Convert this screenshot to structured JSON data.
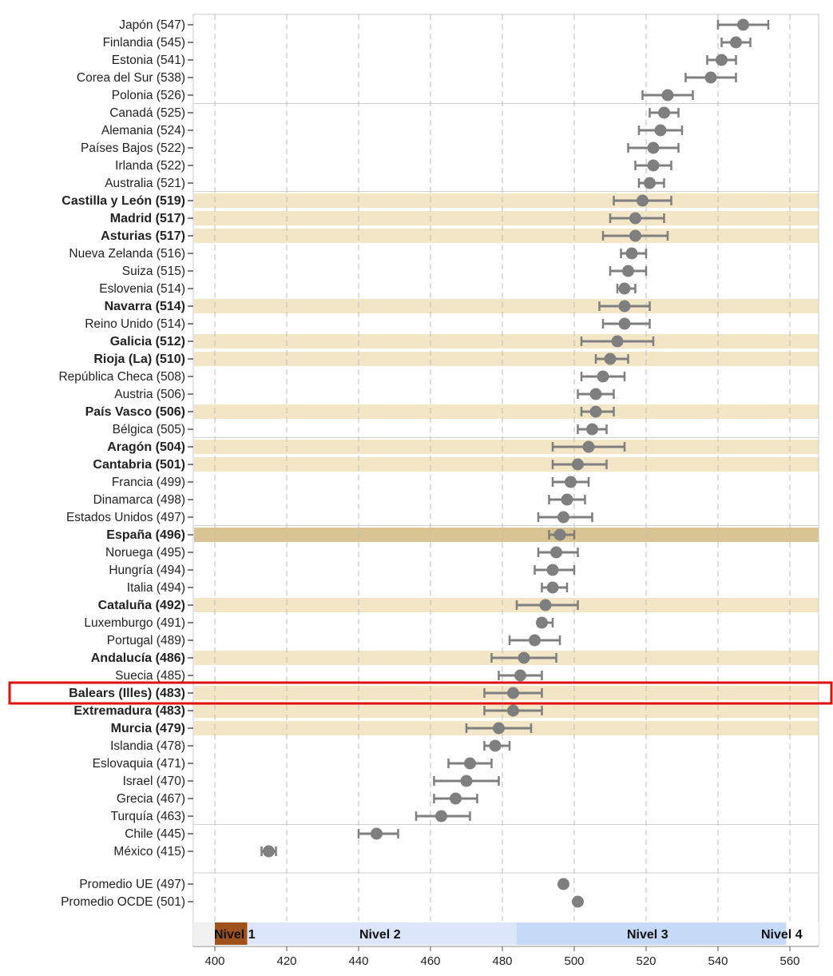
{
  "chart_data": {
    "type": "scatter",
    "subtype": "dot plot with confidence intervals",
    "x_ticks": [
      "400",
      "420",
      "440",
      "460",
      "480",
      "500",
      "520",
      "540",
      "560"
    ],
    "xlim": [
      394,
      568
    ],
    "grid": "vertical dashed",
    "bar_color": "#7f7f7f",
    "highlight_color": "#f3e6c6",
    "spain_highlight_color": "#d9c494",
    "selection_box_color": "#e01010",
    "rows": [
      {
        "label": "Japón (547)",
        "value": 547,
        "lo": 540,
        "hi": 554,
        "kind": "country"
      },
      {
        "label": "Finlandia (545)",
        "value": 545,
        "lo": 541,
        "hi": 549,
        "kind": "country"
      },
      {
        "label": "Estonia (541)",
        "value": 541,
        "lo": 537,
        "hi": 545,
        "kind": "country"
      },
      {
        "label": "Corea del Sur (538)",
        "value": 538,
        "lo": 531,
        "hi": 545,
        "kind": "country"
      },
      {
        "label": "Polonia (526)",
        "value": 526,
        "lo": 519,
        "hi": 533,
        "kind": "country"
      },
      {
        "label": "Canadá (525)",
        "value": 525,
        "lo": 521,
        "hi": 529,
        "kind": "country"
      },
      {
        "label": "Alemania (524)",
        "value": 524,
        "lo": 518,
        "hi": 530,
        "kind": "country"
      },
      {
        "label": "Países Bajos (522)",
        "value": 522,
        "lo": 515,
        "hi": 529,
        "kind": "country"
      },
      {
        "label": "Irlanda (522)",
        "value": 522,
        "lo": 517,
        "hi": 527,
        "kind": "country"
      },
      {
        "label": "Australia (521)",
        "value": 521,
        "lo": 518,
        "hi": 525,
        "kind": "country"
      },
      {
        "label": "Castilla y León (519)",
        "value": 519,
        "lo": 511,
        "hi": 527,
        "kind": "region"
      },
      {
        "label": "Madrid (517)",
        "value": 517,
        "lo": 510,
        "hi": 525,
        "kind": "region"
      },
      {
        "label": "Asturias (517)",
        "value": 517,
        "lo": 508,
        "hi": 526,
        "kind": "region"
      },
      {
        "label": "Nueva Zelanda (516)",
        "value": 516,
        "lo": 513,
        "hi": 520,
        "kind": "country"
      },
      {
        "label": "Suiza (515)",
        "value": 515,
        "lo": 510,
        "hi": 520,
        "kind": "country"
      },
      {
        "label": "Eslovenia (514)",
        "value": 514,
        "lo": 512,
        "hi": 517,
        "kind": "country"
      },
      {
        "label": "Navarra (514)",
        "value": 514,
        "lo": 507,
        "hi": 521,
        "kind": "region"
      },
      {
        "label": "Reino Unido (514)",
        "value": 514,
        "lo": 508,
        "hi": 521,
        "kind": "country"
      },
      {
        "label": "Galicia (512)",
        "value": 512,
        "lo": 502,
        "hi": 522,
        "kind": "region"
      },
      {
        "label": "Rioja (La) (510)",
        "value": 510,
        "lo": 506,
        "hi": 515,
        "kind": "region"
      },
      {
        "label": "República Checa (508)",
        "value": 508,
        "lo": 502,
        "hi": 514,
        "kind": "country"
      },
      {
        "label": "Austria (506)",
        "value": 506,
        "lo": 501,
        "hi": 511,
        "kind": "country"
      },
      {
        "label": "País Vasco (506)",
        "value": 506,
        "lo": 502,
        "hi": 511,
        "kind": "region"
      },
      {
        "label": "Bélgica (505)",
        "value": 505,
        "lo": 501,
        "hi": 509,
        "kind": "country"
      },
      {
        "label": "Aragón (504)",
        "value": 504,
        "lo": 494,
        "hi": 514,
        "kind": "region"
      },
      {
        "label": "Cantabria (501)",
        "value": 501,
        "lo": 494,
        "hi": 509,
        "kind": "region"
      },
      {
        "label": "Francia (499)",
        "value": 499,
        "lo": 494,
        "hi": 504,
        "kind": "country"
      },
      {
        "label": "Dinamarca (498)",
        "value": 498,
        "lo": 493,
        "hi": 503,
        "kind": "country"
      },
      {
        "label": "Estados Unidos (497)",
        "value": 497,
        "lo": 490,
        "hi": 505,
        "kind": "country"
      },
      {
        "label": "España (496)",
        "value": 496,
        "lo": 493,
        "hi": 500,
        "kind": "spain"
      },
      {
        "label": "Noruega (495)",
        "value": 495,
        "lo": 490,
        "hi": 501,
        "kind": "country"
      },
      {
        "label": "Hungría (494)",
        "value": 494,
        "lo": 489,
        "hi": 500,
        "kind": "country"
      },
      {
        "label": "Italia (494)",
        "value": 494,
        "lo": 491,
        "hi": 498,
        "kind": "country"
      },
      {
        "label": "Cataluña (492)",
        "value": 492,
        "lo": 484,
        "hi": 501,
        "kind": "region"
      },
      {
        "label": "Luxemburgo (491)",
        "value": 491,
        "lo": 490,
        "hi": 494,
        "kind": "country"
      },
      {
        "label": "Portugal (489)",
        "value": 489,
        "lo": 482,
        "hi": 496,
        "kind": "country"
      },
      {
        "label": "Andalucía (486)",
        "value": 486,
        "lo": 477,
        "hi": 495,
        "kind": "region"
      },
      {
        "label": "Suecia (485)",
        "value": 485,
        "lo": 479,
        "hi": 491,
        "kind": "country"
      },
      {
        "label": "Balears (Illes) (483)",
        "value": 483,
        "lo": 475,
        "hi": 491,
        "kind": "region",
        "boxed": true
      },
      {
        "label": "Extremadura (483)",
        "value": 483,
        "lo": 475,
        "hi": 491,
        "kind": "region"
      },
      {
        "label": "Murcia (479)",
        "value": 479,
        "lo": 470,
        "hi": 488,
        "kind": "region"
      },
      {
        "label": "Islandia (478)",
        "value": 478,
        "lo": 475,
        "hi": 482,
        "kind": "country"
      },
      {
        "label": "Eslovaquia (471)",
        "value": 471,
        "lo": 465,
        "hi": 477,
        "kind": "country"
      },
      {
        "label": "Israel (470)",
        "value": 470,
        "lo": 461,
        "hi": 479,
        "kind": "country"
      },
      {
        "label": "Grecia (467)",
        "value": 467,
        "lo": 461,
        "hi": 473,
        "kind": "country"
      },
      {
        "label": "Turquía (463)",
        "value": 463,
        "lo": 456,
        "hi": 471,
        "kind": "country"
      },
      {
        "label": "Chile (445)",
        "value": 445,
        "lo": 440,
        "hi": 451,
        "kind": "country"
      },
      {
        "label": "México (415)",
        "value": 415,
        "lo": 413,
        "hi": 417,
        "kind": "country"
      },
      {
        "label": "Promedio UE (497)",
        "value": 497,
        "lo": 497,
        "hi": 497,
        "kind": "average"
      },
      {
        "label": "Promedio OCDE (501)",
        "value": 501,
        "lo": 501,
        "hi": 501,
        "kind": "average"
      }
    ],
    "levels": [
      {
        "label": "Nivel 1",
        "from": 394,
        "to": 409,
        "color": "#f0f0f0",
        "accent_from": 400,
        "accent_to": 409,
        "accent_color": "#a0521d"
      },
      {
        "label": "Nivel 2",
        "from": 409,
        "to": 484,
        "color": "#dbe6fb"
      },
      {
        "label": "Nivel 3",
        "from": 484,
        "to": 559,
        "color": "#c6d9f7"
      },
      {
        "label": "Nivel 4",
        "from": 559,
        "to": 568,
        "color": "#ffffff"
      }
    ]
  }
}
